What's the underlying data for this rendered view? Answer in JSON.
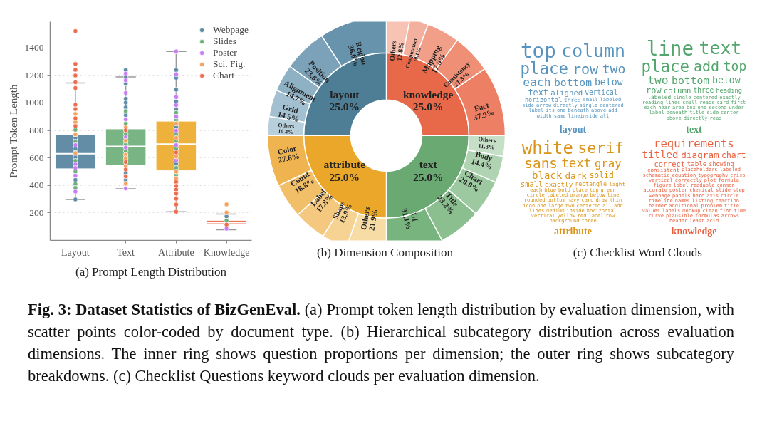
{
  "chart_data": [
    {
      "type": "box",
      "title": "(a) Prompt Length Distribution",
      "ylabel": "Prompt Token Length",
      "categories": [
        "Layout",
        "Text",
        "Attribute",
        "Knowledge"
      ],
      "colors": [
        "#5b87a2",
        "#72b17d",
        "#edae32",
        "#ec6d4f"
      ],
      "boxes": [
        {
          "low": 298,
          "q1": 521,
          "median": 631,
          "q3": 771,
          "high": 1145
        },
        {
          "low": 375,
          "q1": 549,
          "median": 684,
          "q3": 811,
          "high": 1189
        },
        {
          "low": 209,
          "q1": 509,
          "median": 701,
          "q3": 867,
          "high": 1374
        },
        {
          "low": 78,
          "q1": 121,
          "median": 131,
          "q3": 146,
          "high": 191
        }
      ],
      "ylim": [
        0,
        1590
      ],
      "yticks": [
        200,
        400,
        600,
        800,
        1000,
        1200,
        1400
      ],
      "grid": "y",
      "legend": "top right",
      "marker": "circle",
      "series": [
        {
          "name": "Webpage",
          "color": "#5f8ba6",
          "type": "scatter",
          "x": [
            "Layout",
            "Layout",
            "Layout",
            "Layout",
            "Layout",
            "Text",
            "Text",
            "Text",
            "Text",
            "Text",
            "Text",
            "Text",
            "Text",
            "Text",
            "Attribute",
            "Attribute",
            "Attribute",
            "Attribute",
            "Attribute",
            "Attribute",
            "Attribute",
            "Knowledge"
          ],
          "values": [
            745,
            666,
            605,
            440,
            298,
            1239,
            1187,
            1140,
            1030,
            1002,
            967,
            911,
            490,
            440,
            1238,
            1182,
            1096,
            1010,
            955,
            824,
            556,
            175
          ]
        },
        {
          "name": "Slides",
          "color": "#6fb07a",
          "type": "scatter",
          "x": [
            "Layout",
            "Layout",
            "Layout",
            "Layout",
            "Layout",
            "Layout",
            "Text",
            "Text",
            "Text",
            "Text",
            "Text",
            "Attribute",
            "Attribute",
            "Attribute",
            "Attribute",
            "Attribute",
            "Attribute",
            "Attribute",
            "Knowledge"
          ],
          "values": [
            804,
            719,
            579,
            500,
            410,
            382,
            940,
            850,
            775,
            700,
            649,
            928,
            876,
            770,
            720,
            665,
            527,
            478,
            145
          ]
        },
        {
          "name": "Poster",
          "color": "#c77ef5",
          "type": "scatter",
          "x": [
            "Layout",
            "Layout",
            "Layout",
            "Layout",
            "Layout",
            "Text",
            "Text",
            "Text",
            "Text",
            "Text",
            "Text",
            "Text",
            "Attribute",
            "Attribute",
            "Attribute",
            "Attribute",
            "Attribute",
            "Attribute",
            "Attribute",
            "Attribute",
            "Knowledge"
          ],
          "values": [
            693,
            553,
            527,
            471,
            355,
            1213,
            1164,
            1072,
            880,
            750,
            675,
            378,
            1374,
            1208,
            1042,
            984,
            900,
            798,
            693,
            583,
            85
          ]
        },
        {
          "name": "Sci. Fig.",
          "color": "#f5a360",
          "type": "scatter",
          "x": [
            "Layout",
            "Layout",
            "Layout",
            "Layout",
            "Text",
            "Text",
            "Text",
            "Text",
            "Text",
            "Text",
            "Attribute",
            "Attribute",
            "Attribute",
            "Attribute",
            "Attribute",
            "Knowledge",
            "Knowledge"
          ],
          "values": [
            920,
            860,
            771,
            635,
            822,
            724,
            622,
            597,
            541,
            413,
            850,
            745,
            610,
            500,
            450,
            262,
            203
          ]
        },
        {
          "name": "Chart",
          "color": "#ec6d4f",
          "type": "scatter",
          "x": [
            "Layout",
            "Layout",
            "Layout",
            "Layout",
            "Layout",
            "Layout",
            "Layout",
            "Layout",
            "Layout",
            "Layout",
            "Text",
            "Text",
            "Text",
            "Text",
            "Attribute",
            "Attribute",
            "Attribute",
            "Attribute",
            "Attribute",
            "Attribute",
            "Attribute",
            "Attribute",
            "Knowledge"
          ],
          "values": [
            1522,
            1283,
            1240,
            1199,
            1150,
            1108,
            986,
            955,
            888,
            832,
            801,
            570,
            515,
            466,
            640,
            425,
            396,
            370,
            340,
            303,
            261,
            209,
            115
          ]
        }
      ]
    },
    {
      "type": "donut",
      "title": "(b) Dimension Composition",
      "series": [
        {
          "values": [
            25.0,
            25.0,
            25.0,
            25.0
          ],
          "value_labels": [
            "knowledge\n25.0%",
            "text\n25.0%",
            "attribute\n25.0%",
            "layout\n25.0%"
          ],
          "colors": [
            "#e8694a",
            "#6aaa72",
            "#eba72a",
            "#4e7d96"
          ]
        },
        {
          "values": [
            12.8,
            10.1,
            17.9,
            21.3,
            37.9,
            11.3,
            14.4,
            20.0,
            23.2,
            31.1,
            21.9,
            13.9,
            17.8,
            18.8,
            27.6,
            10.4,
            14.5,
            14.7,
            23.8,
            36.6
          ],
          "value_labels": [
            "Others\n12.8%",
            "Computation\n10.1%",
            "Mapping\n17.9%",
            "Consistency\n21.3%",
            "Fact\n37.9%",
            "Others\n11.3%",
            "Body\n14.4%",
            "Chart\n20.0%",
            "Title\n23.2%",
            "UI\n31.1%",
            "Others\n21.9%",
            "Shape\n13.9%",
            "Label\n17.8%",
            "Count\n18.8%",
            "Color\n27.6%",
            "Others\n10.4%",
            "Grid\n14.5%",
            "Alignment\n14.7%",
            "Position\n23.8%",
            "Region\n36.6%"
          ],
          "colors": [
            "#f6c3b4",
            "#f3b09e",
            "#f19f89",
            "#ef8f75",
            "#ed8064",
            "#c5e0c6",
            "#b0d4b2",
            "#9dc9a0",
            "#8bbf8f",
            "#78b47d",
            "#f8dca6",
            "#f6d393",
            "#f4c97f",
            "#f2bf69",
            "#efb450",
            "#b7cedb",
            "#a3c0d0",
            "#8fb1c4",
            "#7ba2b8",
            "#6893ac"
          ]
        }
      ]
    },
    {
      "type": "other",
      "title": "(c) Checklist Word Clouds",
      "xlabel": "layout",
      "color": "#5694bf",
      "annotations": [
        "top",
        "column",
        "place",
        "row",
        "two",
        "each",
        "bottom",
        "below",
        "text",
        "aligned",
        "vertical",
        "horizontal",
        "three",
        "small",
        "labeled",
        "side",
        "arrow",
        "directly",
        "single",
        "centered",
        "label",
        "its",
        "one",
        "beneath",
        "above",
        "add",
        "width",
        "same",
        "lineinside",
        "all"
      ]
    },
    {
      "type": "other",
      "xlabel": "text",
      "color": "#52a56c",
      "annotations": [
        "line",
        "text",
        "place",
        "add",
        "top",
        "two",
        "bottom",
        "below",
        "row",
        "column",
        "three",
        "heading",
        "labeled",
        "single",
        "centered",
        "exactly",
        "reading",
        "lines",
        "small",
        "reads",
        "card",
        "first",
        "each",
        "near",
        "area",
        "box",
        "one",
        "second",
        "under",
        "label",
        "beneath",
        "title",
        "side",
        "center",
        "above",
        "directly",
        "read"
      ]
    },
    {
      "type": "other",
      "xlabel": "attribute",
      "color": "#d99419",
      "annotations": [
        "white",
        "serif",
        "sans",
        "text",
        "gray",
        "black",
        "dark",
        "solid",
        "small",
        "exactly",
        "rectangle",
        "light",
        "each",
        "blue",
        "bold",
        "place",
        "top",
        "green",
        "circle",
        "labeled",
        "orange",
        "below",
        "line",
        "rounded",
        "bottom",
        "navy",
        "card",
        "draw",
        "thin",
        "icon",
        "one",
        "large",
        "two",
        "centered",
        "all",
        "add",
        "lines",
        "medium",
        "inside",
        "horizontal",
        "vertical",
        "yellow",
        "red",
        "label",
        "row",
        "background",
        "three"
      ]
    },
    {
      "type": "other",
      "xlabel": "knowledge",
      "color": "#e9603f",
      "annotations": [
        "requirements",
        "titled",
        "diagram",
        "chart",
        "correct",
        "table",
        "showing",
        "consistent",
        "placeholders",
        "labeled",
        "schematic",
        "equation",
        "typography",
        "crisp",
        "vertical",
        "correctly",
        "plot",
        "formula",
        "figure",
        "label",
        "readable",
        "common",
        "accurate",
        "poster",
        "chemical",
        "slide",
        "step",
        "webpage",
        "panels",
        "hero",
        "axis",
        "circle",
        "timeline",
        "names",
        "listing",
        "reaction",
        "harder",
        "additional",
        "problem",
        "title",
        "values",
        "labels",
        "mockup",
        "clean",
        "find",
        "time",
        "curve",
        "plausible",
        "formulas",
        "arrows",
        "header",
        "least",
        "acid"
      ]
    },
    {
      "type": "other",
      "title": "Fig. 3: Dataset Statistics of BizGenEval.",
      "annotations": [
        "(a) Prompt token length distribution by evaluation dimension, with scatter points color-coded by document type. (b) Hierarchical subcategory distribution across evaluation dimensions. The inner ring shows question proportions per dimension; the outer ring shows subcategory breakdowns. (c) Checklist Questions keyword clouds per evaluation dimension."
      ]
    }
  ]
}
